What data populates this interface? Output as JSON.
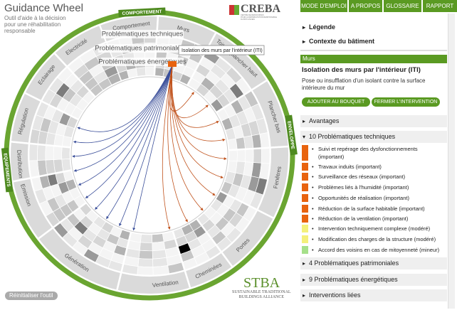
{
  "header": {
    "title": "Guidance Wheel",
    "subtitle": [
      "Outil d'aide à la décision",
      "pour une réhabilitation",
      "responsable"
    ]
  },
  "logos": {
    "creba": "CREBA",
    "creba_tagline": [
      "CENTRE DE RESSOURCES",
      "POUR LA RÉHABILITATION RESPONSABLE",
      "DU BÂTI ANCIEN"
    ],
    "stba": "STBA",
    "stba_tagline": [
      "SUSTAINABLE TRADITIONAL",
      "BUILDINGS ALLIANCE"
    ]
  },
  "wheel": {
    "groups": [
      "COMPORTEMENT",
      "ENVELOPPE",
      "EQUIPEMENTS"
    ],
    "segments": [
      "Comportement",
      "Murs",
      "Toiture/plancher haut",
      "Plancher bas",
      "Fenêtres",
      "Portes",
      "Cheminées",
      "Ventilation",
      "Génération",
      "Emission",
      "Distribution",
      "Régulation",
      "Eclairage",
      "Electricité"
    ],
    "layers": [
      "Problématiques techniques",
      "Problématiques patrimoniales",
      "Problématiques énergétiques"
    ],
    "tooltip": "Isolation des murs par l'intérieur (ITI)"
  },
  "reset_button": "Réinitialiser l'outil",
  "nav": [
    "MODE D'EMPLOI",
    "A PROPOS",
    "GLOSSAIRE",
    "RAPPORT"
  ],
  "panel": {
    "legend": "Légende",
    "context": "Contexte du bâtiment",
    "category": "Murs",
    "title": "Isolation des murs par l'intérieur (ITI)",
    "description": "Pose ou insufflation d'un isolant contre la surface intérieure du mur",
    "buttons": [
      "AJOUTER AU BOUQUET",
      "FERMER L'INTERVENTION"
    ],
    "sections": {
      "advantages": "Avantages",
      "technical": "10 Problématiques techniques",
      "heritage": "4 Problématiques patrimoniales",
      "energy": "9 Problématiques énergétiques",
      "related": "Interventions liées"
    },
    "technical_items": [
      {
        "text": "Suivi et repérage des dysfonctionnements (important)",
        "color": "#e8630e"
      },
      {
        "text": "Travaux induits (important)",
        "color": "#e8630e"
      },
      {
        "text": "Surveillance des réseaux (important)",
        "color": "#e8630e"
      },
      {
        "text": "Problèmes liés à l'humidité (important)",
        "color": "#e8630e"
      },
      {
        "text": "Opportunités de réalisation (important)",
        "color": "#e8630e"
      },
      {
        "text": "Réduction de la surface habitable (important)",
        "color": "#e8630e"
      },
      {
        "text": "Réduction de la ventilation  (important)",
        "color": "#e8630e"
      },
      {
        "text": "Intervention techniquement complexe (modéré)",
        "color": "#f4f07a"
      },
      {
        "text": "Modification des charges de la structure  (modéré)",
        "color": "#f4f07a"
      },
      {
        "text": "Accord des voisins en cas de mitoyenneté (mineur)",
        "color": "#a6e08a"
      }
    ]
  }
}
